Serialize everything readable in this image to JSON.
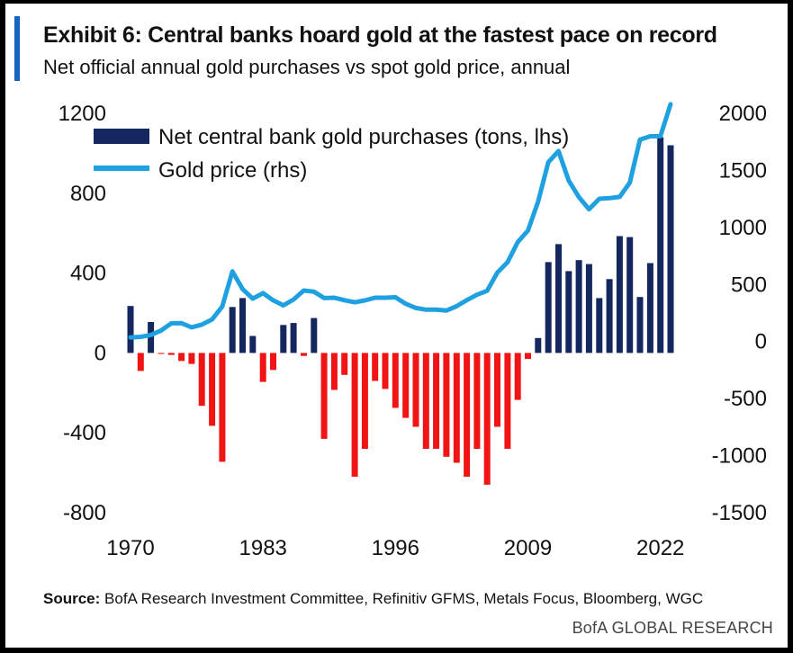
{
  "header": {
    "title": "Exhibit 6: Central banks hoard gold at the fastest pace on record",
    "subtitle": "Net official annual gold purchases vs spot gold price, annual"
  },
  "footer": {
    "source_label": "Source:",
    "source_text": " BofA Research Investment Committee, Refinitiv GFMS, Metals Focus, Bloomberg, WGC",
    "brand": "BofA GLOBAL RESEARCH"
  },
  "colors": {
    "positive_bar": "#14275f",
    "negative_bar": "#f01414",
    "line": "#1fa0e0",
    "accent": "#1565c0"
  },
  "chart_data": {
    "type": "bar+line",
    "x_tick_labels": [
      "1970",
      "1983",
      "1996",
      "2009",
      "2022"
    ],
    "x_ticks": [
      1970,
      1983,
      1996,
      2009,
      2022
    ],
    "xlim": [
      1970,
      2023
    ],
    "y_left": {
      "lim": [
        -800,
        1200
      ],
      "ticks": [
        -800,
        -400,
        0,
        400,
        800,
        1200
      ],
      "tick_labels": [
        "-800",
        "-400",
        "0",
        "400",
        "800",
        "1200"
      ]
    },
    "y_right": {
      "lim": [
        -1500,
        2000
      ],
      "ticks": [
        -1500,
        -1000,
        -500,
        0,
        500,
        1000,
        1500,
        2000
      ],
      "tick_labels": [
        "-1500",
        "-1000",
        "-500",
        "0",
        "500",
        "1000",
        "1500",
        "2000"
      ]
    },
    "legend_position": "top-left",
    "series": [
      {
        "name": "Net central bank gold purchases (tons, lhs)",
        "type": "bar",
        "axis": "left",
        "x": [
          1970,
          1971,
          1972,
          1973,
          1974,
          1975,
          1976,
          1977,
          1978,
          1979,
          1980,
          1981,
          1982,
          1983,
          1984,
          1985,
          1986,
          1987,
          1988,
          1989,
          1990,
          1991,
          1992,
          1993,
          1994,
          1995,
          1996,
          1997,
          1998,
          1999,
          2000,
          2001,
          2002,
          2003,
          2004,
          2005,
          2006,
          2007,
          2008,
          2009,
          2010,
          2011,
          2012,
          2013,
          2014,
          2015,
          2016,
          2017,
          2018,
          2019,
          2020,
          2021,
          2022,
          2023
        ],
        "values": [
          235,
          -90,
          155,
          -5,
          -10,
          -40,
          -55,
          -265,
          -365,
          -545,
          230,
          275,
          85,
          -145,
          -85,
          140,
          150,
          -15,
          175,
          -430,
          -185,
          -110,
          -620,
          -480,
          -140,
          -180,
          -275,
          -325,
          -370,
          -480,
          -480,
          -520,
          -550,
          -620,
          -480,
          -660,
          -370,
          -480,
          -235,
          -30,
          75,
          455,
          545,
          410,
          465,
          445,
          275,
          370,
          585,
          580,
          280,
          450,
          1080,
          1040
        ]
      },
      {
        "name": "Gold price (rhs)",
        "type": "line",
        "axis": "right",
        "x": [
          1970,
          1971,
          1972,
          1973,
          1974,
          1975,
          1976,
          1977,
          1978,
          1979,
          1980,
          1981,
          1982,
          1983,
          1984,
          1985,
          1986,
          1987,
          1988,
          1989,
          1990,
          1991,
          1992,
          1993,
          1994,
          1995,
          1996,
          1997,
          1998,
          1999,
          2000,
          2001,
          2002,
          2003,
          2004,
          2005,
          2006,
          2007,
          2008,
          2009,
          2010,
          2011,
          2012,
          2013,
          2014,
          2015,
          2016,
          2017,
          2018,
          2019,
          2020,
          2021,
          2022,
          2023
        ],
        "values": [
          36,
          41,
          58,
          97,
          159,
          161,
          125,
          148,
          193,
          307,
          615,
          460,
          376,
          424,
          361,
          317,
          368,
          447,
          437,
          381,
          384,
          362,
          344,
          360,
          384,
          384,
          388,
          331,
          294,
          279,
          279,
          271,
          310,
          363,
          410,
          445,
          604,
          695,
          872,
          972,
          1225,
          1572,
          1669,
          1411,
          1266,
          1160,
          1251,
          1257,
          1268,
          1393,
          1770,
          1799,
          1800,
          2080
        ]
      }
    ]
  }
}
